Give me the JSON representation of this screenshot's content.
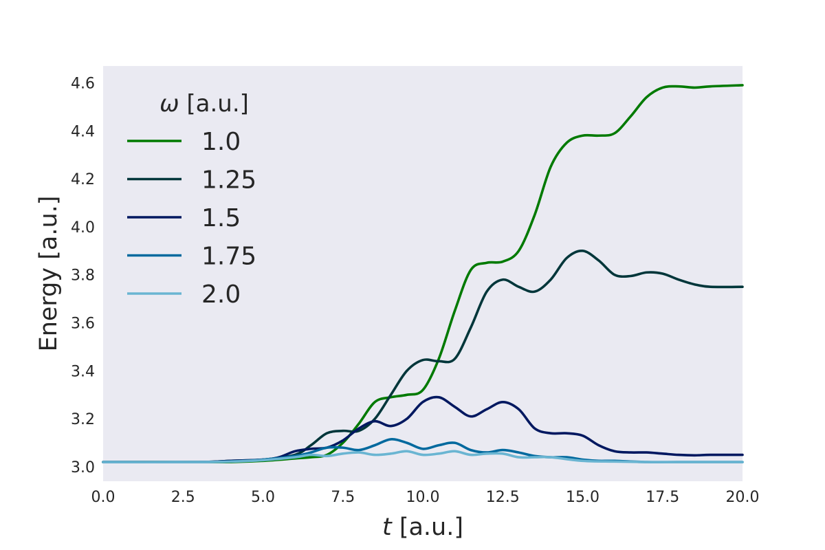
{
  "chart_data": {
    "type": "line",
    "xlabel": {
      "symbol": "t",
      "unit": " [a.u.]"
    },
    "ylabel": "Energy [a.u.]",
    "xlim": [
      0,
      20
    ],
    "ylim": [
      2.94,
      4.67
    ],
    "xticks": [
      0,
      2.5,
      5,
      7.5,
      10,
      12.5,
      15,
      17.5,
      20
    ],
    "xtick_labels": [
      "0.0",
      "2.5",
      "5.0",
      "7.5",
      "10.0",
      "12.5",
      "15.0",
      "17.5",
      "20.0"
    ],
    "yticks": [
      3.0,
      3.2,
      3.4,
      3.6,
      3.8,
      4.0,
      4.2,
      4.4,
      4.6
    ],
    "ytick_labels": [
      "3.0",
      "3.2",
      "3.4",
      "3.6",
      "3.8",
      "4.0",
      "4.2",
      "4.4",
      "4.6"
    ],
    "grid": false,
    "background": "#eaeaf2",
    "legend": {
      "title_symbol": "ω",
      "title_unit": " [a.u.]",
      "placement": "upper-left"
    },
    "series": [
      {
        "name": "1.0",
        "color": "#007a00",
        "points": [
          [
            0,
            3.02
          ],
          [
            3,
            3.02
          ],
          [
            4,
            3.02
          ],
          [
            5,
            3.025
          ],
          [
            6,
            3.035
          ],
          [
            6.5,
            3.04
          ],
          [
            7,
            3.05
          ],
          [
            7.5,
            3.1
          ],
          [
            8,
            3.18
          ],
          [
            8.5,
            3.27
          ],
          [
            9,
            3.29
          ],
          [
            9.5,
            3.3
          ],
          [
            10,
            3.32
          ],
          [
            10.5,
            3.45
          ],
          [
            11,
            3.65
          ],
          [
            11.5,
            3.82
          ],
          [
            12,
            3.85
          ],
          [
            12.5,
            3.855
          ],
          [
            13,
            3.9
          ],
          [
            13.5,
            4.05
          ],
          [
            14,
            4.25
          ],
          [
            14.5,
            4.35
          ],
          [
            15,
            4.38
          ],
          [
            15.5,
            4.38
          ],
          [
            16,
            4.39
          ],
          [
            16.5,
            4.46
          ],
          [
            17,
            4.54
          ],
          [
            17.5,
            4.58
          ],
          [
            18,
            4.585
          ],
          [
            18.5,
            4.58
          ],
          [
            19,
            4.585
          ],
          [
            20,
            4.59
          ]
        ]
      },
      {
        "name": "1.25",
        "color": "#00363a",
        "points": [
          [
            0,
            3.02
          ],
          [
            3,
            3.02
          ],
          [
            4,
            3.025
          ],
          [
            5,
            3.03
          ],
          [
            6,
            3.05
          ],
          [
            6.5,
            3.09
          ],
          [
            7,
            3.14
          ],
          [
            7.5,
            3.15
          ],
          [
            8,
            3.15
          ],
          [
            8.5,
            3.2
          ],
          [
            9,
            3.3
          ],
          [
            9.5,
            3.4
          ],
          [
            10,
            3.445
          ],
          [
            10.5,
            3.44
          ],
          [
            11,
            3.45
          ],
          [
            11.5,
            3.58
          ],
          [
            12,
            3.73
          ],
          [
            12.5,
            3.78
          ],
          [
            13,
            3.75
          ],
          [
            13.5,
            3.73
          ],
          [
            14,
            3.78
          ],
          [
            14.5,
            3.87
          ],
          [
            15,
            3.9
          ],
          [
            15.5,
            3.86
          ],
          [
            16,
            3.8
          ],
          [
            16.5,
            3.795
          ],
          [
            17,
            3.81
          ],
          [
            17.5,
            3.805
          ],
          [
            18,
            3.78
          ],
          [
            18.5,
            3.76
          ],
          [
            19,
            3.75
          ],
          [
            20,
            3.75
          ]
        ]
      },
      {
        "name": "1.5",
        "color": "#001860",
        "points": [
          [
            0,
            3.02
          ],
          [
            3,
            3.02
          ],
          [
            4,
            3.025
          ],
          [
            5,
            3.03
          ],
          [
            5.5,
            3.04
          ],
          [
            6,
            3.065
          ],
          [
            6.5,
            3.075
          ],
          [
            7,
            3.08
          ],
          [
            7.5,
            3.11
          ],
          [
            8,
            3.16
          ],
          [
            8.5,
            3.19
          ],
          [
            9,
            3.17
          ],
          [
            9.5,
            3.2
          ],
          [
            10,
            3.27
          ],
          [
            10.5,
            3.29
          ],
          [
            11,
            3.25
          ],
          [
            11.5,
            3.21
          ],
          [
            12,
            3.24
          ],
          [
            12.5,
            3.27
          ],
          [
            13,
            3.24
          ],
          [
            13.5,
            3.16
          ],
          [
            14,
            3.14
          ],
          [
            14.5,
            3.14
          ],
          [
            15,
            3.13
          ],
          [
            15.5,
            3.09
          ],
          [
            16,
            3.065
          ],
          [
            16.5,
            3.06
          ],
          [
            17,
            3.06
          ],
          [
            17.5,
            3.055
          ],
          [
            18,
            3.05
          ],
          [
            18.5,
            3.048
          ],
          [
            19,
            3.05
          ],
          [
            20,
            3.05
          ]
        ]
      },
      {
        "name": "1.75",
        "color": "#00699e",
        "points": [
          [
            0,
            3.02
          ],
          [
            3,
            3.02
          ],
          [
            4,
            3.023
          ],
          [
            5,
            3.03
          ],
          [
            6,
            3.045
          ],
          [
            6.5,
            3.06
          ],
          [
            7,
            3.08
          ],
          [
            7.5,
            3.08
          ],
          [
            8,
            3.07
          ],
          [
            8.5,
            3.09
          ],
          [
            9,
            3.115
          ],
          [
            9.5,
            3.1
          ],
          [
            10,
            3.075
          ],
          [
            10.5,
            3.09
          ],
          [
            11,
            3.1
          ],
          [
            11.5,
            3.07
          ],
          [
            12,
            3.06
          ],
          [
            12.5,
            3.07
          ],
          [
            13,
            3.06
          ],
          [
            13.5,
            3.045
          ],
          [
            14,
            3.04
          ],
          [
            14.5,
            3.04
          ],
          [
            15,
            3.03
          ],
          [
            15.5,
            3.025
          ],
          [
            16,
            3.025
          ],
          [
            17,
            3.02
          ],
          [
            18,
            3.02
          ],
          [
            19,
            3.02
          ],
          [
            20,
            3.02
          ]
        ]
      },
      {
        "name": "2.0",
        "color": "#6ab5d2",
        "points": [
          [
            0,
            3.02
          ],
          [
            3,
            3.02
          ],
          [
            4,
            3.022
          ],
          [
            5,
            3.028
          ],
          [
            6,
            3.04
          ],
          [
            6.5,
            3.05
          ],
          [
            7,
            3.045
          ],
          [
            7.5,
            3.055
          ],
          [
            8,
            3.06
          ],
          [
            8.5,
            3.05
          ],
          [
            9,
            3.055
          ],
          [
            9.5,
            3.065
          ],
          [
            10,
            3.05
          ],
          [
            10.5,
            3.055
          ],
          [
            11,
            3.065
          ],
          [
            11.5,
            3.05
          ],
          [
            12,
            3.055
          ],
          [
            12.5,
            3.055
          ],
          [
            13,
            3.04
          ],
          [
            13.5,
            3.04
          ],
          [
            14,
            3.04
          ],
          [
            15,
            3.025
          ],
          [
            16,
            3.022
          ],
          [
            17,
            3.02
          ],
          [
            18,
            3.02
          ],
          [
            20,
            3.02
          ]
        ]
      }
    ]
  }
}
